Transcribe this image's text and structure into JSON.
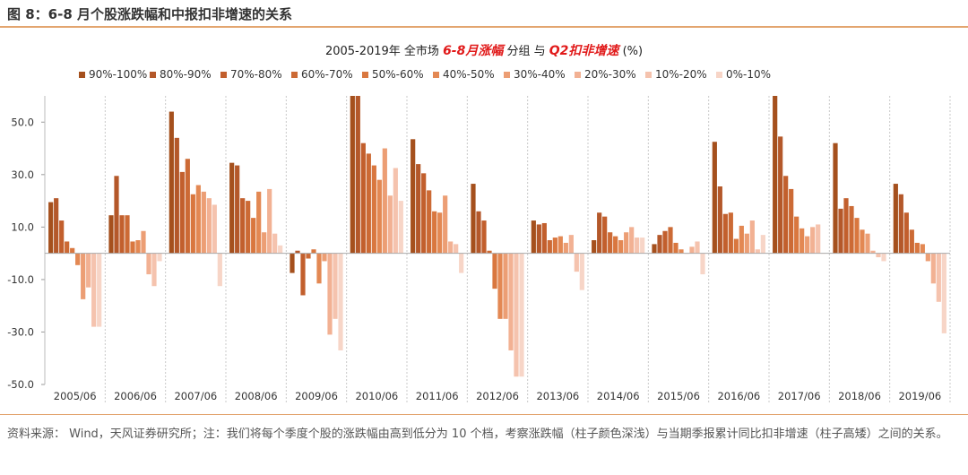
{
  "figure": {
    "title": "图 8：6-8 月个股涨跌幅和中报扣非增速的关系",
    "source": "资料来源： Wind，天风证券研究所；注：我们将每个季度个股的涨跌幅由高到低分为 10 个档，考察涨跌幅（柱子颜色深浅）与当期季报累计同比扣非增速（柱子高矮）之间的关系。"
  },
  "chart_data": {
    "type": "bar",
    "title_parts": [
      "2005-2019年 全市场 ",
      "6-8月涨幅",
      " 分组 与 ",
      "Q2扣非增速",
      " (%)"
    ],
    "categories": [
      "2005/06",
      "2006/06",
      "2007/06",
      "2008/06",
      "2009/06",
      "2010/06",
      "2011/06",
      "2012/06",
      "2013/06",
      "2014/06",
      "2015/06",
      "2016/06",
      "2017/06",
      "2018/06",
      "2019/06"
    ],
    "series": [
      {
        "name": "90%-100%",
        "color": "#a5501d",
        "values": [
          19.5,
          14.5,
          54,
          34.5,
          -7.5,
          61,
          43.5,
          26.5,
          12.5,
          5,
          3.5,
          42.5,
          60,
          42,
          26.5
        ]
      },
      {
        "name": "80%-90%",
        "color": "#b4582a",
        "values": [
          21,
          29.5,
          44,
          33.5,
          1,
          61,
          34,
          16,
          11,
          15.5,
          7,
          25.5,
          44.5,
          17,
          22.5
        ]
      },
      {
        "name": "70%-80%",
        "color": "#c25f2d",
        "values": [
          12.5,
          14.5,
          31,
          21,
          -16,
          42,
          30.5,
          12.5,
          11.5,
          14,
          8.5,
          15,
          29.5,
          21,
          15.5
        ]
      },
      {
        "name": "60%-70%",
        "color": "#cc6a35",
        "values": [
          4.5,
          14.5,
          36,
          20,
          -2,
          38,
          24,
          1,
          5,
          8,
          10,
          15.5,
          24.5,
          18,
          9
        ]
      },
      {
        "name": "50%-60%",
        "color": "#d9773f",
        "values": [
          2,
          4.5,
          22.5,
          13.5,
          1.5,
          33.5,
          16,
          -13.5,
          6,
          6.5,
          4,
          5.5,
          14,
          13.5,
          4
        ]
      },
      {
        "name": "40%-50%",
        "color": "#e38853",
        "values": [
          -4.5,
          5,
          26,
          23.5,
          -11.5,
          28,
          15.5,
          -25,
          6.5,
          5,
          1.5,
          10.5,
          9.5,
          9,
          3.5
        ]
      },
      {
        "name": "30%-40%",
        "color": "#ec9e74",
        "values": [
          -17.5,
          8.5,
          23.5,
          8,
          -3,
          40,
          22,
          -25,
          4,
          8,
          0,
          7.5,
          6.5,
          7.5,
          -3
        ]
      },
      {
        "name": "20%-30%",
        "color": "#f2b193",
        "values": [
          -13,
          -8,
          21,
          24.5,
          -31,
          22,
          4.5,
          -37,
          7,
          10,
          2.5,
          12.5,
          10,
          1,
          -11.5
        ]
      },
      {
        "name": "10%-20%",
        "color": "#f5c3ae",
        "values": [
          -28,
          -12.5,
          18.5,
          7.5,
          -25,
          32.5,
          3.5,
          -47,
          -7,
          6,
          4.5,
          1.5,
          11,
          -1.5,
          -18.5
        ]
      },
      {
        "name": "0%-10%",
        "color": "#f7d5c7",
        "values": [
          -28,
          -3,
          -12.5,
          3,
          -37,
          20,
          -7.5,
          -47,
          -14,
          6,
          -8,
          7,
          0,
          -3,
          -30.5
        ]
      }
    ],
    "ylim": [
      -50,
      60
    ],
    "yticks": [
      50.0,
      30.0,
      10.0,
      -10.0,
      -30.0,
      -50.0
    ],
    "ytick_labels": [
      "50.0",
      "30.0",
      "10.0",
      "-10.0",
      "-30.0",
      "-50.0"
    ],
    "legend_position": "top",
    "grid": false
  }
}
